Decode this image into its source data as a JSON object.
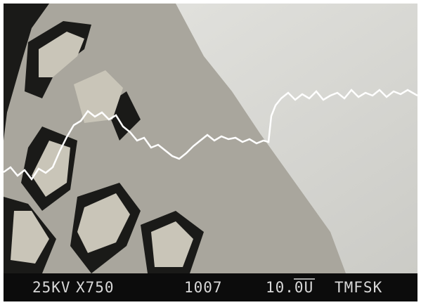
{
  "info_bar": {
    "voltage": "25KV",
    "magnification": "X750",
    "image_number": "1007",
    "scale": "10.0U",
    "operator": "TMFSK"
  }
}
